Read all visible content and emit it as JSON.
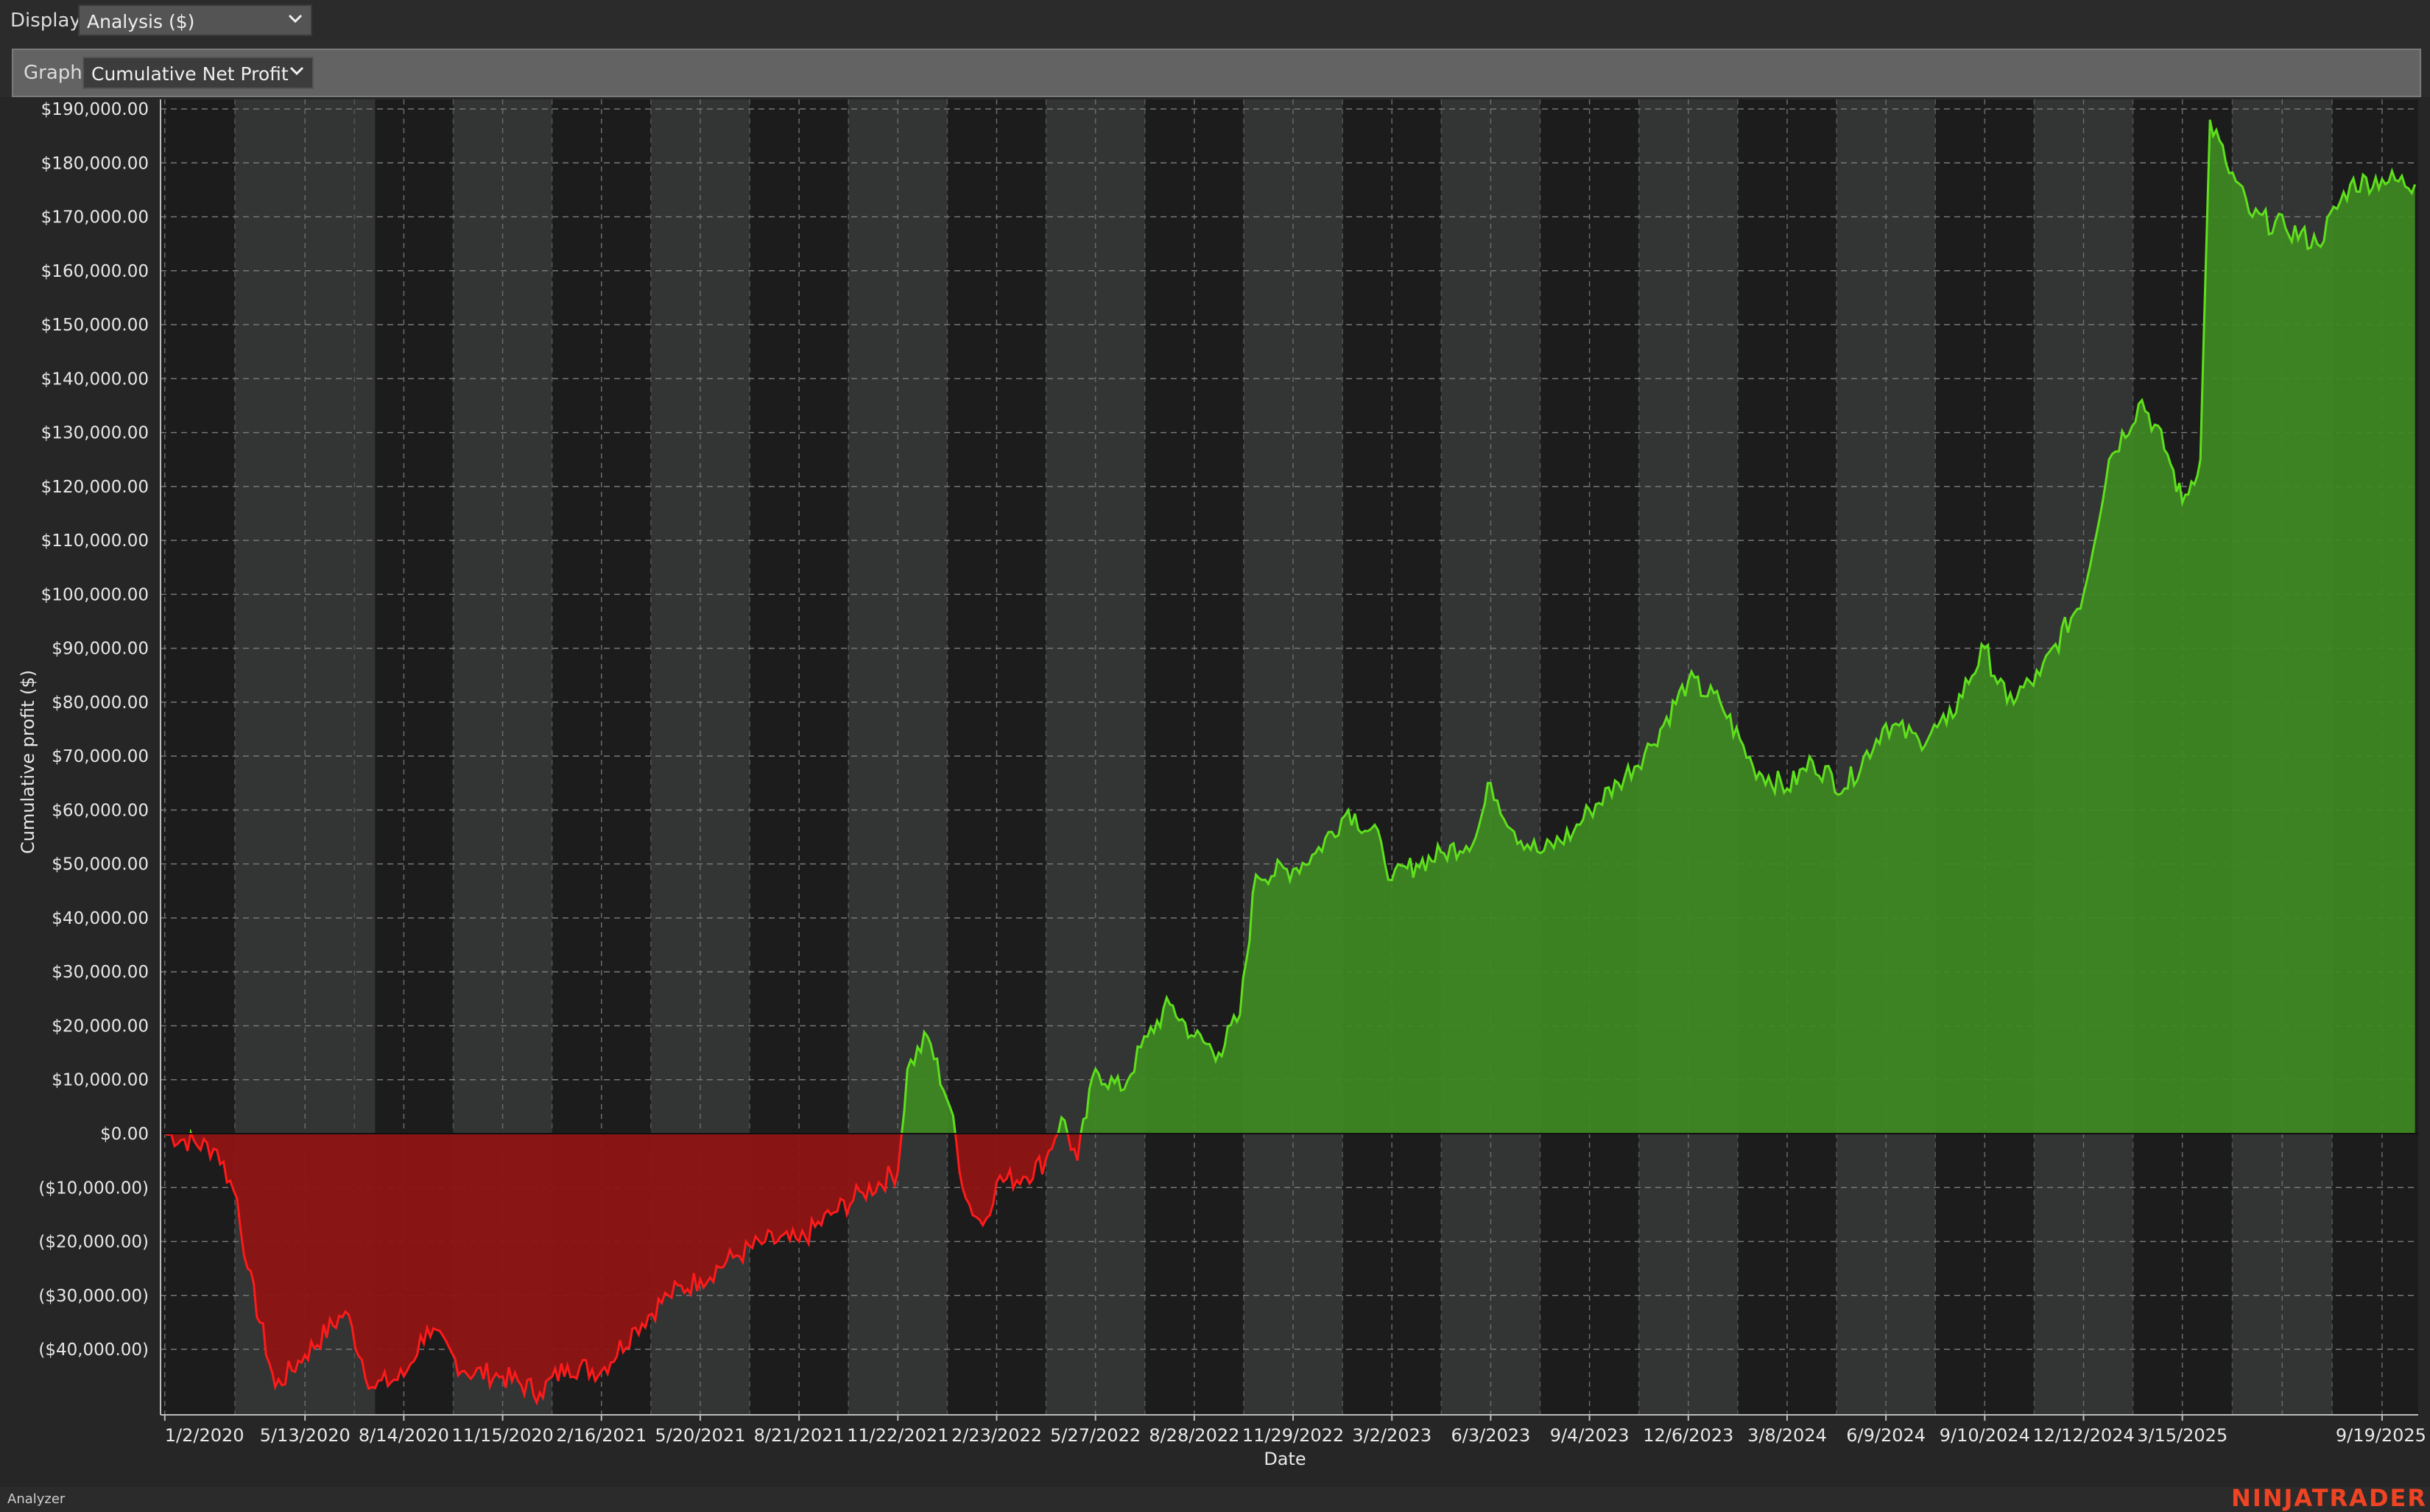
{
  "toolbar": {
    "display_label": "Display",
    "display_value": "Analysis ($)",
    "graph_label": "Graph",
    "graph_value": "Cumulative Net Profit"
  },
  "status": {
    "panel_name": "Analyzer",
    "brand": "NINJATRADER"
  },
  "colors": {
    "positive_line": "#5fe01d",
    "positive_fill": "#3f8a22",
    "negative_line": "#ff1a1a",
    "negative_fill": "#8f1414",
    "plot_bg": "#1c1c1c",
    "band_bg": "#333434"
  },
  "chart_data": {
    "type": "area",
    "title": "",
    "xlabel": "Date",
    "ylabel": "Cumulative profit ($)",
    "ylim": [
      -50000,
      190000
    ],
    "grid": true,
    "y_ticks": [
      {
        "v": 190000,
        "label": "$190,000.00"
      },
      {
        "v": 180000,
        "label": "$180,000.00"
      },
      {
        "v": 170000,
        "label": "$170,000.00"
      },
      {
        "v": 160000,
        "label": "$160,000.00"
      },
      {
        "v": 150000,
        "label": "$150,000.00"
      },
      {
        "v": 140000,
        "label": "$140,000.00"
      },
      {
        "v": 130000,
        "label": "$130,000.00"
      },
      {
        "v": 120000,
        "label": "$120,000.00"
      },
      {
        "v": 110000,
        "label": "$110,000.00"
      },
      {
        "v": 100000,
        "label": "$100,000.00"
      },
      {
        "v": 90000,
        "label": "$90,000.00"
      },
      {
        "v": 80000,
        "label": "$80,000.00"
      },
      {
        "v": 70000,
        "label": "$70,000.00"
      },
      {
        "v": 60000,
        "label": "$60,000.00"
      },
      {
        "v": 50000,
        "label": "$50,000.00"
      },
      {
        "v": 40000,
        "label": "$40,000.00"
      },
      {
        "v": 30000,
        "label": "$30,000.00"
      },
      {
        "v": 20000,
        "label": "$20,000.00"
      },
      {
        "v": 10000,
        "label": "$10,000.00"
      },
      {
        "v": 0,
        "label": "$0.00"
      },
      {
        "v": -10000,
        "label": "($10,000.00)"
      },
      {
        "v": -20000,
        "label": "($20,000.00)"
      },
      {
        "v": -30000,
        "label": "($30,000.00)"
      },
      {
        "v": -40000,
        "label": "($40,000.00)"
      }
    ],
    "x_ticks": [
      "1/2/2020",
      "5/13/2020",
      "8/14/2020",
      "11/15/2020",
      "2/16/2021",
      "5/20/2021",
      "8/21/2021",
      "11/22/2021",
      "2/23/2022",
      "5/27/2022",
      "8/28/2022",
      "11/29/2022",
      "3/2/2023",
      "6/3/2023",
      "9/4/2023",
      "12/6/2023",
      "3/8/2024",
      "6/9/2024",
      "9/10/2024",
      "12/12/2024",
      "3/15/2025",
      "9/19/2025"
    ],
    "x": [
      "2020-01-02",
      "2020-02-20",
      "2020-03-10",
      "2020-03-20",
      "2020-04-15",
      "2020-05-13",
      "2020-06-20",
      "2020-07-15",
      "2020-08-14",
      "2020-09-05",
      "2020-10-10",
      "2020-11-15",
      "2020-12-20",
      "2021-01-15",
      "2021-02-16",
      "2021-03-20",
      "2021-04-20",
      "2021-05-20",
      "2021-06-20",
      "2021-07-20",
      "2021-08-21",
      "2021-09-20",
      "2021-10-20",
      "2021-11-22",
      "2021-12-01",
      "2021-12-20",
      "2022-01-10",
      "2022-01-25",
      "2022-02-10",
      "2022-02-23",
      "2022-03-20",
      "2022-04-10",
      "2022-04-25",
      "2022-05-10",
      "2022-05-27",
      "2022-06-20",
      "2022-07-15",
      "2022-08-05",
      "2022-08-28",
      "2022-09-20",
      "2022-10-10",
      "2022-10-25",
      "2022-11-29",
      "2022-12-20",
      "2023-01-20",
      "2023-02-20",
      "2023-03-02",
      "2023-03-25",
      "2023-04-20",
      "2023-05-20",
      "2023-06-03",
      "2023-06-25",
      "2023-07-20",
      "2023-08-20",
      "2023-09-04",
      "2023-10-01",
      "2023-11-01",
      "2023-12-06",
      "2024-01-05",
      "2024-02-05",
      "2024-03-08",
      "2024-04-01",
      "2024-05-01",
      "2024-06-09",
      "2024-07-10",
      "2024-08-05",
      "2024-09-10",
      "2024-10-01",
      "2024-11-01",
      "2024-12-12",
      "2025-01-05",
      "2025-02-05",
      "2025-03-01",
      "2025-03-15",
      "2025-04-01",
      "2025-04-10",
      "2025-04-25",
      "2025-05-20",
      "2025-06-20",
      "2025-07-20",
      "2025-08-20",
      "2025-09-19",
      "2025-10-20"
    ],
    "series": [
      {
        "values": [
          0,
          -3000,
          -12000,
          -25000,
          -47000,
          -41000,
          -33000,
          -47000,
          -45000,
          -36000,
          -44000,
          -45000,
          -48000,
          -43000,
          -44000,
          -36000,
          -30000,
          -27000,
          -23000,
          -20000,
          -20000,
          -15000,
          -11000,
          -7000,
          12000,
          18000,
          5000,
          -12000,
          -17000,
          -9000,
          -8000,
          -5000,
          3000,
          -5000,
          12000,
          8000,
          18000,
          24000,
          18000,
          15000,
          22000,
          48000,
          49000,
          52000,
          60000,
          54000,
          47000,
          50000,
          52000,
          55000,
          65000,
          56000,
          52000,
          56000,
          60000,
          65000,
          72000,
          84000,
          80000,
          68000,
          64000,
          69000,
          64000,
          76000,
          73000,
          76000,
          90000,
          80000,
          85000,
          100000,
          125000,
          136000,
          126000,
          117000,
          125000,
          188000,
          180000,
          170000,
          168000,
          165000,
          176000,
          177000,
          176000
        ]
      }
    ]
  }
}
